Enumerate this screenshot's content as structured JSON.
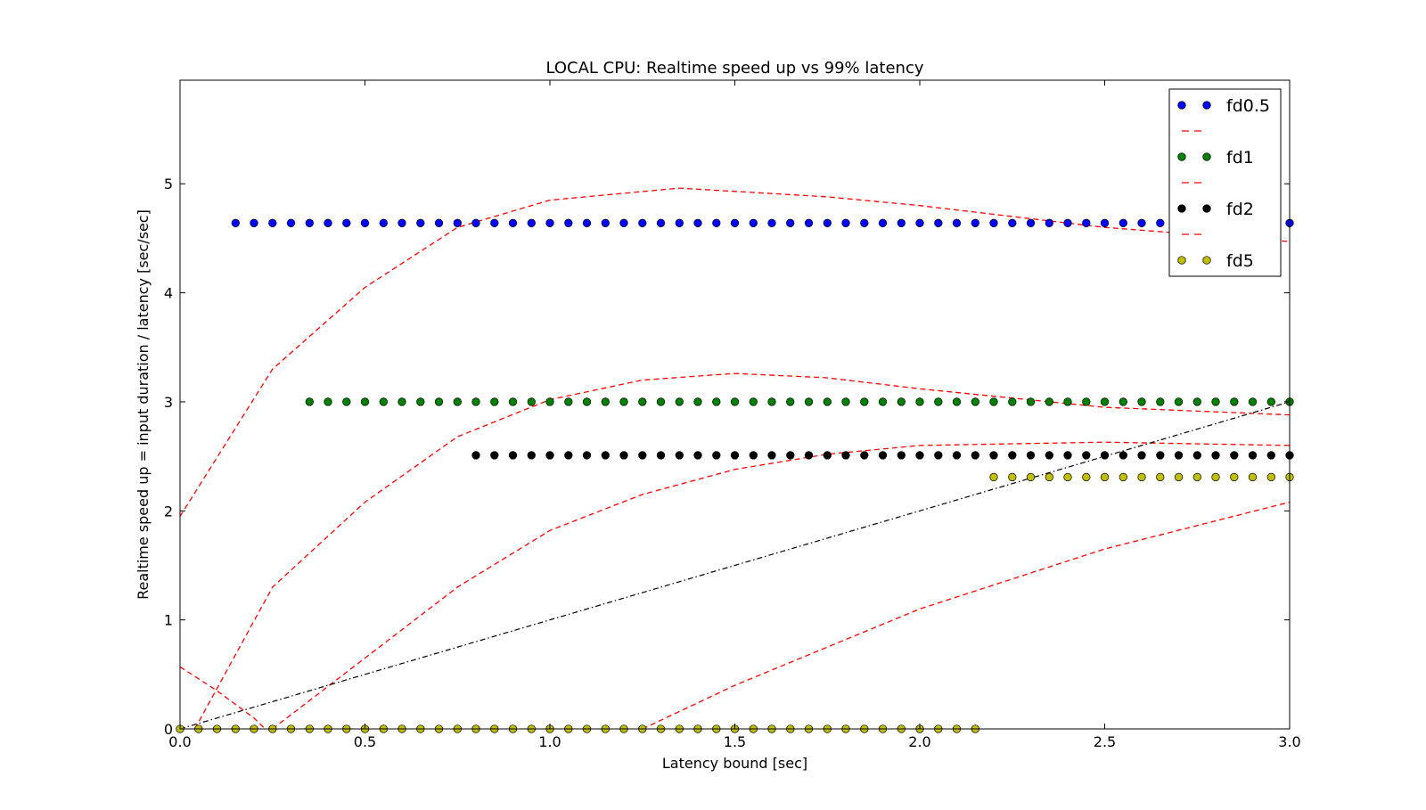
{
  "chart_data": {
    "type": "scatter",
    "title": "LOCAL CPU: Realtime speed up vs 99% latency",
    "xlabel": "Latency bound [sec]",
    "ylabel": "Realtime speed up = input duration / latency [sec/sec]",
    "xlim": [
      0.0,
      3.0
    ],
    "ylim": [
      0,
      5.95
    ],
    "xticks": [
      0.0,
      0.5,
      1.0,
      1.5,
      2.0,
      2.5,
      3.0
    ],
    "xtick_labels": [
      "0.0",
      "0.5",
      "1.0",
      "1.5",
      "2.0",
      "2.5",
      "3.0"
    ],
    "yticks": [
      0,
      1,
      2,
      3,
      4,
      5
    ],
    "ytick_labels": [
      "0",
      "1",
      "2",
      "3",
      "4",
      "5"
    ],
    "grid": false,
    "legend_position": "top-right",
    "series": [
      {
        "name": "fd0.5",
        "marker_color": "#0000ff",
        "points": [
          {
            "x_start": 0.15,
            "x_end": 3.0,
            "x_step": 0.05,
            "y": 4.64
          }
        ]
      },
      {
        "name": "fd1",
        "marker_color": "#008000",
        "points": [
          {
            "x_start": 0.35,
            "x_end": 3.0,
            "x_step": 0.05,
            "y": 3.0
          }
        ]
      },
      {
        "name": "fd2",
        "marker_color": "#000000",
        "points": [
          {
            "x_start": 0.8,
            "x_end": 3.0,
            "x_step": 0.05,
            "y": 2.51
          }
        ]
      },
      {
        "name": "fd5",
        "marker_color": "#bfbf00",
        "points": [
          {
            "x_start": 0.0,
            "x_end": 2.15,
            "x_step": 0.05,
            "y": 0.0
          },
          {
            "x_start": 2.2,
            "x_end": 3.0,
            "x_step": 0.05,
            "y": 2.31
          }
        ]
      }
    ],
    "fit_curves": [
      {
        "style": "dashed",
        "color": "#ff0000",
        "points": [
          [
            0.0,
            1.95
          ],
          [
            0.25,
            3.3
          ],
          [
            0.5,
            4.05
          ],
          [
            0.75,
            4.6
          ],
          [
            1.0,
            4.85
          ],
          [
            1.35,
            4.96
          ],
          [
            1.75,
            4.88
          ],
          [
            2.0,
            4.8
          ],
          [
            2.5,
            4.6
          ],
          [
            3.0,
            4.47
          ]
        ]
      },
      {
        "style": "dashed",
        "color": "#ff0000",
        "points": [
          [
            0.04,
            0.0
          ],
          [
            0.25,
            1.3
          ],
          [
            0.5,
            2.08
          ],
          [
            0.75,
            2.68
          ],
          [
            1.0,
            3.02
          ],
          [
            1.25,
            3.2
          ],
          [
            1.5,
            3.26
          ],
          [
            1.75,
            3.22
          ],
          [
            2.0,
            3.12
          ],
          [
            2.5,
            2.95
          ],
          [
            3.0,
            2.88
          ]
        ]
      },
      {
        "style": "dashed",
        "color": "#ff0000",
        "points": [
          [
            0.25,
            0.0
          ],
          [
            0.5,
            0.65
          ],
          [
            0.75,
            1.3
          ],
          [
            1.0,
            1.82
          ],
          [
            1.25,
            2.15
          ],
          [
            1.5,
            2.38
          ],
          [
            1.75,
            2.52
          ],
          [
            2.0,
            2.6
          ],
          [
            2.5,
            2.63
          ],
          [
            3.0,
            2.6
          ]
        ]
      },
      {
        "style": "dashed",
        "color": "#ff0000",
        "points": [
          [
            1.25,
            0.0
          ],
          [
            1.5,
            0.4
          ],
          [
            1.75,
            0.75
          ],
          [
            2.0,
            1.1
          ],
          [
            2.5,
            1.65
          ],
          [
            3.0,
            2.08
          ]
        ]
      },
      {
        "style": "dashed",
        "color": "#ff0000",
        "points": [
          [
            0.0,
            0.57
          ],
          [
            0.1,
            0.35
          ],
          [
            0.2,
            0.1
          ],
          [
            0.23,
            0.0
          ]
        ]
      }
    ],
    "reference_line": {
      "style": "dash-dot",
      "color": "#000000",
      "points": [
        [
          0.0,
          0.0
        ],
        [
          3.0,
          3.0
        ]
      ]
    }
  }
}
